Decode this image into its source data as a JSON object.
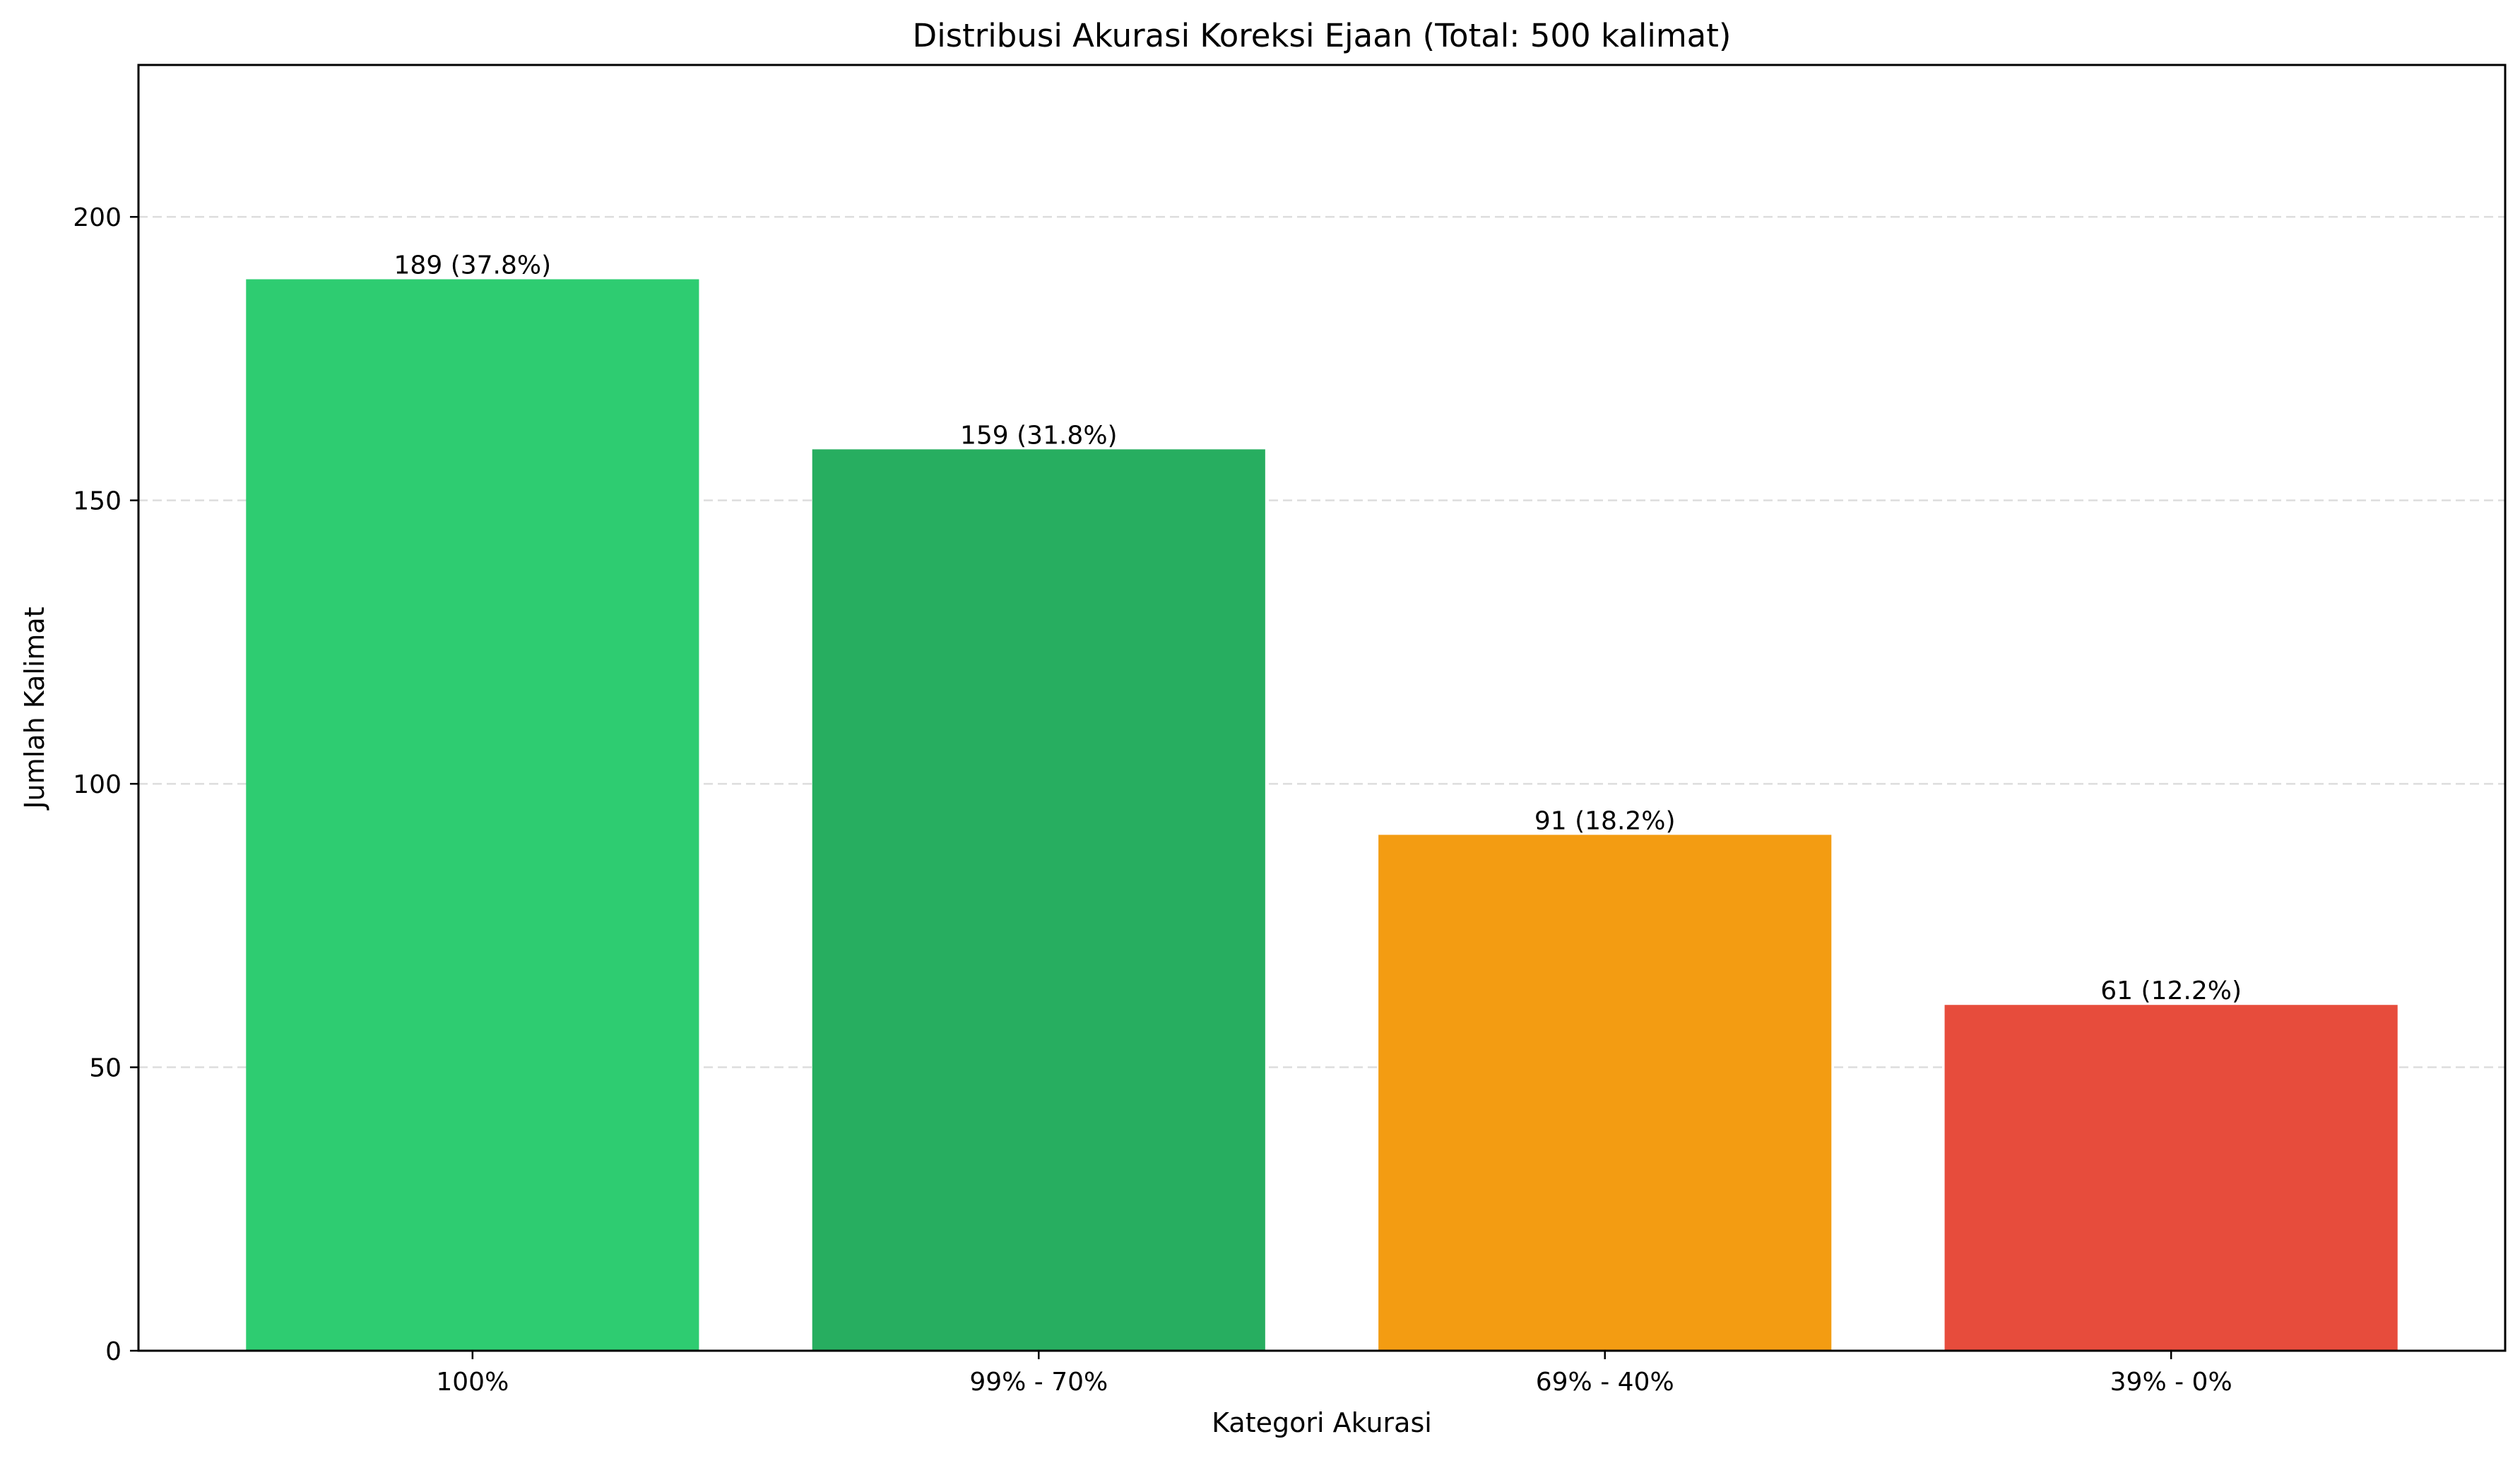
{
  "chart_data": {
    "type": "bar",
    "title": "Distribusi Akurasi Koreksi Ejaan (Total: 500 kalimat)",
    "xlabel": "Kategori Akurasi",
    "ylabel": "Jumlah Kalimat",
    "categories": [
      "100%",
      "99% - 70%",
      "69% - 40%",
      "39% - 0%"
    ],
    "values": [
      189,
      159,
      91,
      61
    ],
    "bar_labels": [
      "189 (37.8%)",
      "159 (31.8%)",
      "91 (18.2%)",
      "61 (12.2%)"
    ],
    "colors": [
      "#2ecc71",
      "#27ae60",
      "#f39c12",
      "#e74c3c"
    ],
    "ylim": [
      0,
      226.8
    ],
    "yticks": [
      0,
      50,
      100,
      150,
      200
    ],
    "ytick_labels": [
      "0",
      "50",
      "100",
      "150",
      "200"
    ],
    "grid": "y-dashed"
  }
}
